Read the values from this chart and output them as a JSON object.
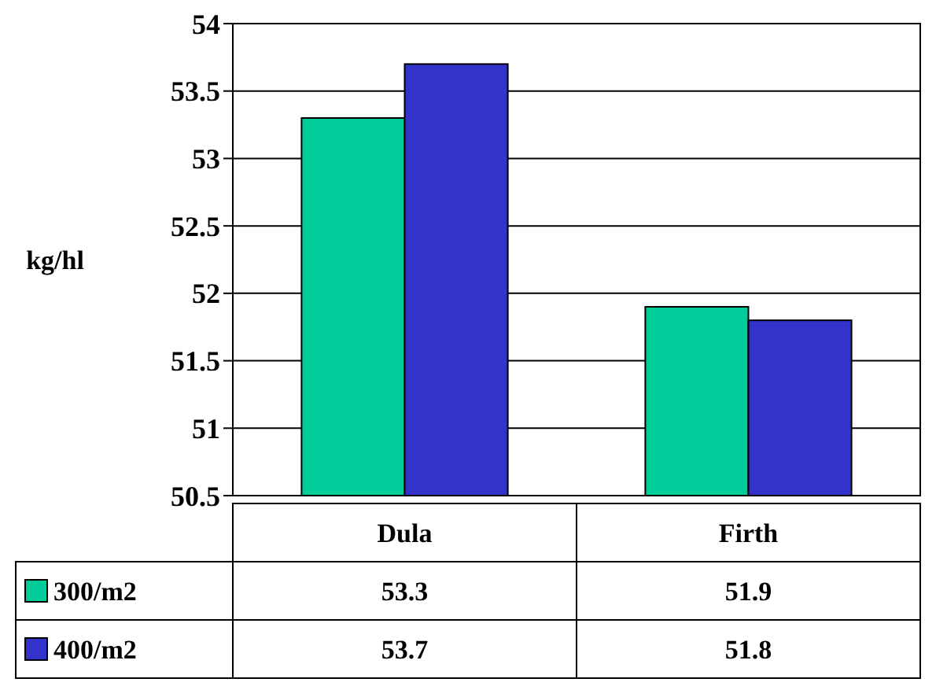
{
  "chart_data": {
    "type": "bar",
    "ylabel": "kg/hl",
    "categories": [
      "Dula",
      "Firth"
    ],
    "series": [
      {
        "name": "300/m2",
        "color": "#00cc99",
        "values": [
          53.3,
          51.9
        ]
      },
      {
        "name": "400/m2",
        "color": "#3333cc",
        "values": [
          53.7,
          51.8
        ]
      }
    ],
    "ylim": [
      50.5,
      54
    ],
    "yticks": [
      50.5,
      51,
      51.5,
      52,
      52.5,
      53,
      53.5,
      54
    ],
    "grid": "y",
    "legend": "bottom",
    "data_labels": true
  }
}
